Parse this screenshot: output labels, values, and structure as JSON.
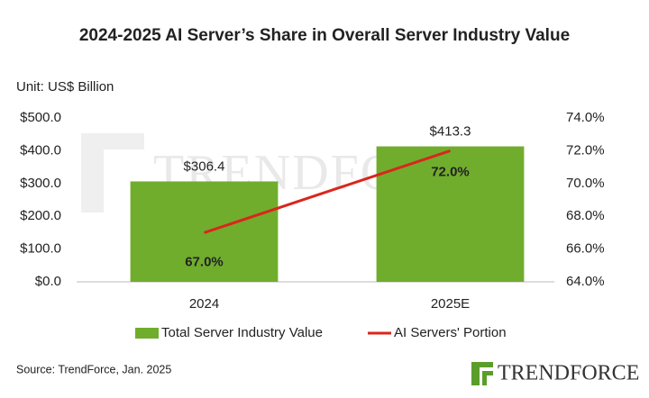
{
  "chart_data": {
    "type": "bar",
    "title": "2024-2025 AI Server’s Share in Overall Server Industry Value",
    "y_label": "Unit: US$ Billion",
    "source": "Source: TrendForce, Jan. 2025",
    "logo": "TRENDFORCE",
    "categories": [
      "2024",
      "2025E"
    ],
    "series": [
      {
        "name": "Total Server Industry Value",
        "type": "bar",
        "color": "#70ad2d",
        "values": [
          306.4,
          413.3
        ],
        "value_labels": [
          "$306.4",
          "$413.3"
        ]
      },
      {
        "name": "AI Servers' Portion",
        "type": "line",
        "axis": "y2",
        "color": "#d9261c",
        "values": [
          67.0,
          72.0
        ],
        "value_labels": [
          "67.0%",
          "72.0%"
        ]
      }
    ],
    "ylim": [
      0,
      500
    ],
    "yticks": [
      {
        "value": 0,
        "label": "$0.0"
      },
      {
        "value": 100,
        "label": "$100.0"
      },
      {
        "value": 200,
        "label": "$200.0"
      },
      {
        "value": 300,
        "label": "$300.0"
      },
      {
        "value": 400,
        "label": "$400.0"
      },
      {
        "value": 500,
        "label": "$500.0"
      }
    ],
    "y2lim": [
      64,
      74
    ],
    "y2ticks": [
      {
        "value": 64,
        "label": "64.0%"
      },
      {
        "value": 66,
        "label": "66.0%"
      },
      {
        "value": 68,
        "label": "68.0%"
      },
      {
        "value": 70,
        "label": "70.0%"
      },
      {
        "value": 72,
        "label": "72.0%"
      },
      {
        "value": 74,
        "label": "74.0%"
      }
    ],
    "grid": false,
    "legend": "bottom"
  }
}
